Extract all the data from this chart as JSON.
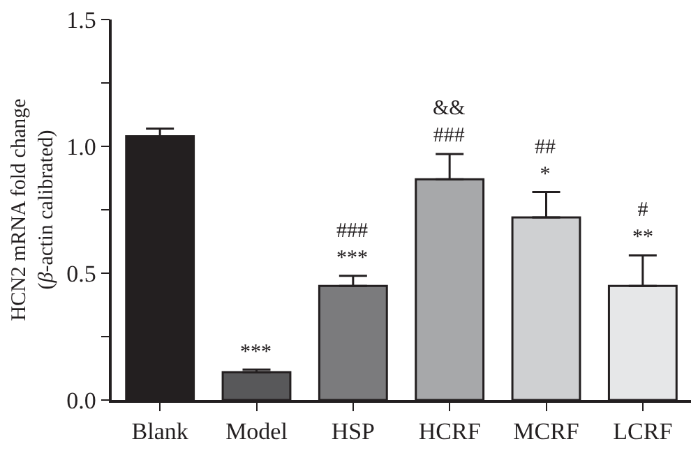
{
  "chart_data": {
    "type": "bar",
    "ylabel": "HCN2 mRNA fold change\n(β-actin calibrated)",
    "categories": [
      "Blank",
      "Model",
      "HSP",
      "HCRF",
      "MCRF",
      "LCRF"
    ],
    "values": [
      1.04,
      0.11,
      0.45,
      0.87,
      0.72,
      0.45
    ],
    "colors": [
      "#231f20",
      "#58585a",
      "#7b7b7d",
      "#a7a8aa",
      "#cfd0d2",
      "#e6e7e8"
    ],
    "errors": [
      [
        1.04,
        1.07
      ],
      [
        0.11,
        0.12
      ],
      [
        0.45,
        0.49
      ],
      [
        0.87,
        0.97
      ],
      [
        0.72,
        0.82
      ],
      [
        0.45,
        0.57
      ]
    ],
    "ylim": [
      0,
      1.5
    ],
    "yticks": [
      {
        "value": 0,
        "label": "0.0"
      },
      {
        "value": 0.25,
        "label": null
      },
      0.5,
      {
        "value": 0.75,
        "label": null
      },
      {
        "value": 1,
        "label": "1.0"
      },
      {
        "value": 1.25,
        "label": null
      },
      1.5
    ],
    "grid": false,
    "value_labels": [
      null,
      "***",
      "###\n***",
      "&&\n###",
      "##\n*",
      "#\n**"
    ]
  }
}
